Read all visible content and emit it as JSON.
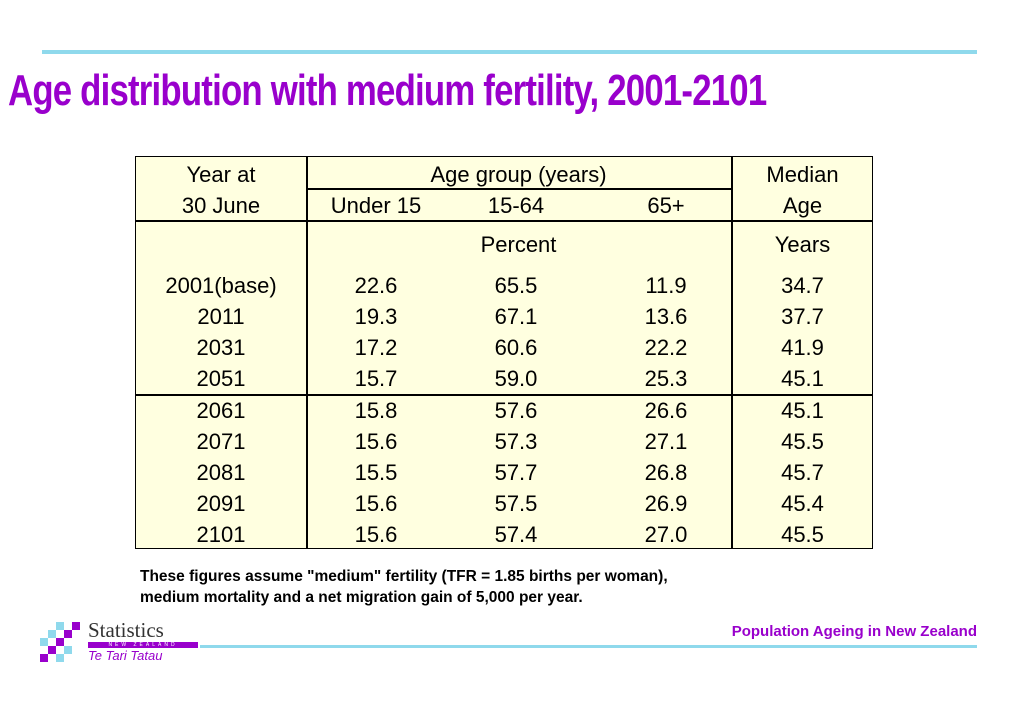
{
  "title": "Age distribution with medium fertility, 2001-2101",
  "table": {
    "header": {
      "year_line1": "Year at",
      "year_line2": "30 June",
      "age_group": "Age group (years)",
      "sub_under15": "Under 15",
      "sub_15_64": "15-64",
      "sub_65plus": "65+",
      "median_line1": "Median",
      "median_line2": "Age",
      "unit_percent": "Percent",
      "unit_years": "Years"
    },
    "rows": [
      {
        "year": "2001(base)",
        "under15": "22.6",
        "age15_64": "65.5",
        "age65plus": "11.9",
        "median": "34.7"
      },
      {
        "year": "2011",
        "under15": "19.3",
        "age15_64": "67.1",
        "age65plus": "13.6",
        "median": "37.7"
      },
      {
        "year": "2031",
        "under15": "17.2",
        "age15_64": "60.6",
        "age65plus": "22.2",
        "median": "41.9"
      },
      {
        "year": "2051",
        "under15": "15.7",
        "age15_64": "59.0",
        "age65plus": "25.3",
        "median": "45.1"
      },
      {
        "year": "2061",
        "under15": "15.8",
        "age15_64": "57.6",
        "age65plus": "26.6",
        "median": "45.1"
      },
      {
        "year": "2071",
        "under15": "15.6",
        "age15_64": "57.3",
        "age65plus": "27.1",
        "median": "45.5"
      },
      {
        "year": "2081",
        "under15": "15.5",
        "age15_64": "57.7",
        "age65plus": "26.8",
        "median": "45.7"
      },
      {
        "year": "2091",
        "under15": "15.6",
        "age15_64": "57.5",
        "age65plus": "26.9",
        "median": "45.4"
      },
      {
        "year": "2101",
        "under15": "15.6",
        "age15_64": "57.4",
        "age65plus": "27.0",
        "median": "45.5"
      }
    ]
  },
  "note": {
    "line1": "These figures assume \"medium\" fertility (TFR = 1.85 births per woman),",
    "line2": "medium mortality and a net migration gain of 5,000 per year."
  },
  "footer": {
    "text": "Population Ageing in New Zealand",
    "logo_name": "Statistics",
    "logo_country": "NEW ZEALAND",
    "logo_maori": "Te Tari Tatau"
  },
  "colors": {
    "title": "#9900cc",
    "rule": "#8fd9ec",
    "table_background": "#ffffe0"
  }
}
